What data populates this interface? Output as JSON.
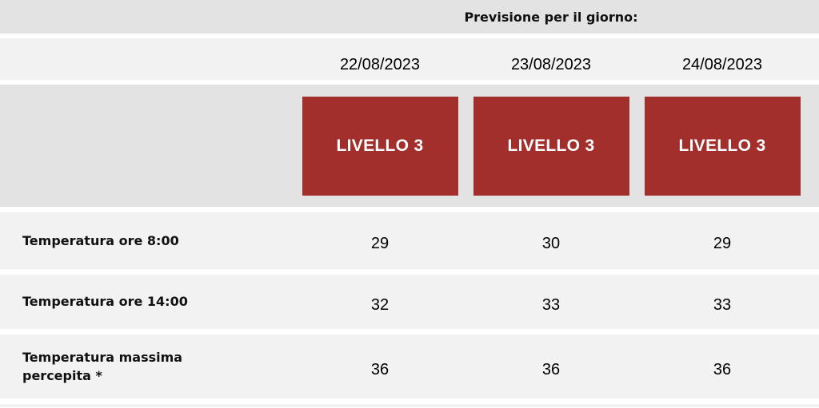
{
  "header": {
    "title": "Previsione per il giorno:"
  },
  "forecast": {
    "dates": [
      "22/08/2023",
      "23/08/2023",
      "24/08/2023"
    ],
    "levels": [
      {
        "label": "LIVELLO 3"
      },
      {
        "label": "LIVELLO 3"
      },
      {
        "label": "LIVELLO 3"
      }
    ],
    "rows": [
      {
        "label": "Temperatura ore 8:00",
        "values": [
          "29",
          "30",
          "29"
        ]
      },
      {
        "label": "Temperatura ore 14:00",
        "values": [
          "32",
          "33",
          "33"
        ]
      },
      {
        "label": "Temperatura massima percepita *",
        "values": [
          "36",
          "36",
          "36"
        ]
      }
    ]
  },
  "colors": {
    "level-badge-bg": "#a32f2d",
    "level-badge-text": "#ffffff",
    "row-light-bg": "#f2f2f2",
    "row-dark-bg": "#e3e3e3",
    "gap-color": "#ffffff",
    "text-color": "#000000"
  }
}
